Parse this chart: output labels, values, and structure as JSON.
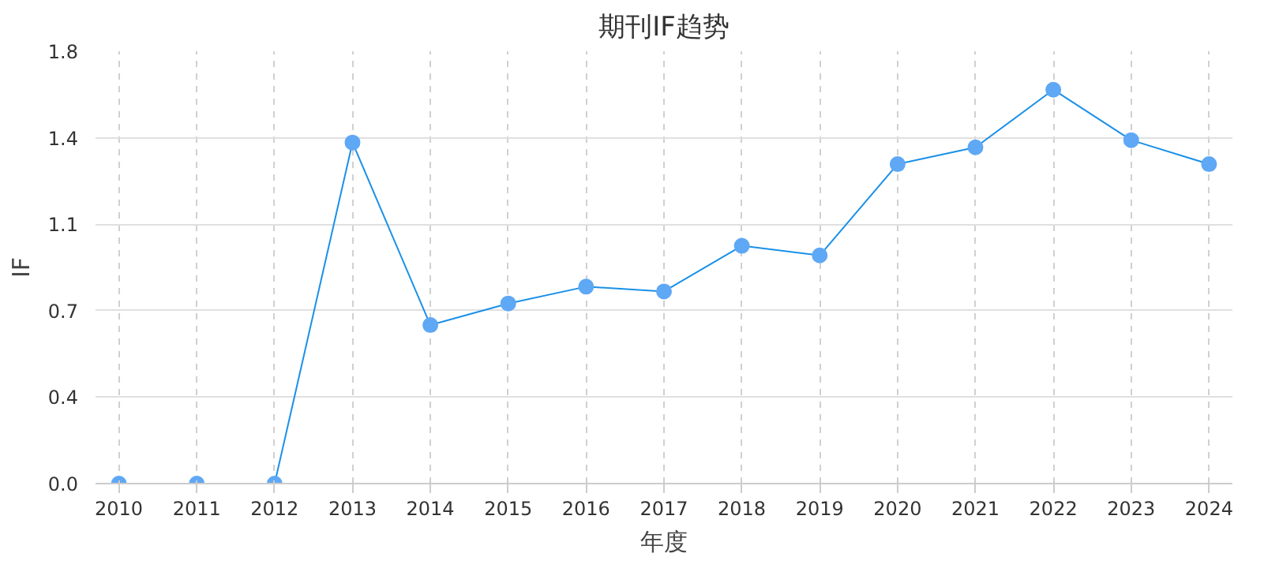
{
  "chart_data": {
    "type": "line",
    "title": "期刊IF趋势",
    "xlabel": "年度",
    "ylabel": "IF",
    "x": [
      2010,
      2011,
      2012,
      2013,
      2014,
      2015,
      2016,
      2017,
      2018,
      2019,
      2020,
      2021,
      2022,
      2023,
      2024
    ],
    "series": [
      {
        "color": "#1a90e8",
        "values": [
          0,
          0,
          0,
          1.42,
          0.66,
          0.75,
          0.82,
          0.8,
          0.99,
          0.95,
          1.33,
          1.4,
          1.64,
          1.43,
          1.33
        ]
      }
    ],
    "xlim": [
      2009.7,
      2024.3
    ],
    "xticks": [
      2010,
      2011,
      2012,
      2013,
      2014,
      2015,
      2016,
      2017,
      2018,
      2019,
      2020,
      2021,
      2022,
      2023,
      2024
    ],
    "ylim": [
      0,
      1.8
    ],
    "yticks": [
      {
        "value": 0,
        "label": "0.0"
      },
      {
        "value": 0.36,
        "label": "0.4"
      },
      {
        "value": 0.72,
        "label": "0.7"
      },
      {
        "value": 1.08,
        "label": "1.1"
      },
      {
        "value": 1.44,
        "label": "1.4"
      },
      {
        "value": 1.8,
        "label": "1.8"
      }
    ],
    "grid": true,
    "marker": "circle",
    "line_style": "solid"
  }
}
